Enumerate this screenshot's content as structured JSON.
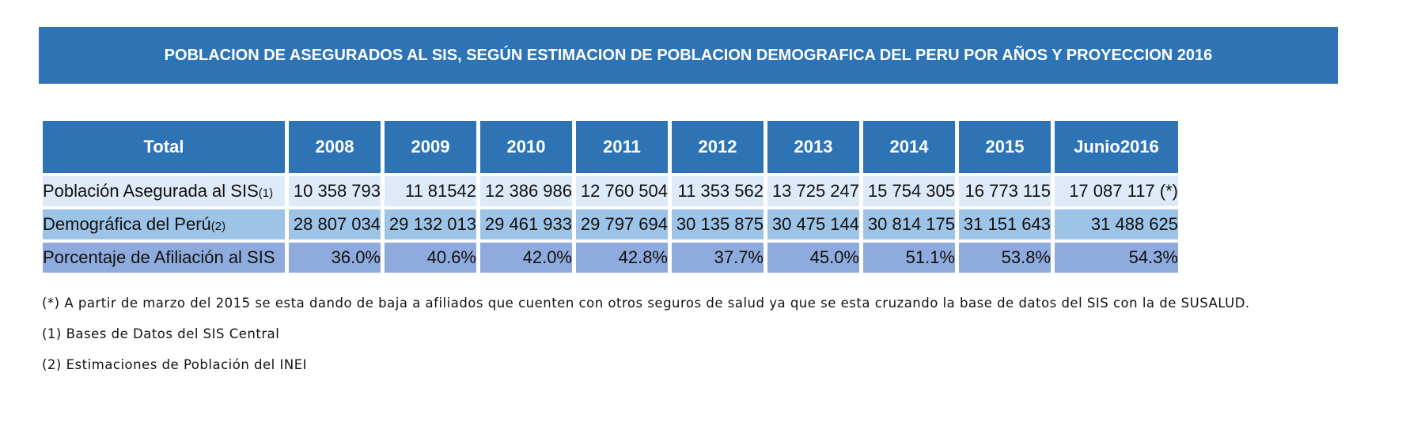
{
  "title": "POBLACION DE ASEGURADOS AL SIS, SEGÚN ESTIMACION DE POBLACION DEMOGRAFICA DEL PERU POR AÑOS Y PROYECCION 2016",
  "table": {
    "headers": [
      "Total",
      "2008",
      "2009",
      "2010",
      "2011",
      "2012",
      "2013",
      "2014",
      "2015",
      "Junio2016"
    ],
    "rows": [
      {
        "label": "Población Asegurada al SIS",
        "ref": "(1)",
        "values": [
          "10 358 793",
          "11 81542",
          "12 386 986",
          "12 760 504",
          "11 353 562",
          "13 725 247",
          "15 754 305",
          "16 773 115",
          "17 087 117 (*)"
        ]
      },
      {
        "label": "Demográfica del Perú",
        "ref": "(2)",
        "values": [
          "28 807 034",
          "29 132 013",
          "29 461 933",
          "29 797 694",
          "30 135 875",
          "30 475 144",
          "30 814 175",
          "31 151 643",
          "31 488 625"
        ]
      },
      {
        "label": "Porcentaje de Afiliación al SIS",
        "ref": "",
        "values": [
          "36.0%",
          "40.6%",
          "42.0%",
          "42.8%",
          "37.7%",
          "45.0%",
          "51.1%",
          "53.8%",
          "54.3%"
        ]
      }
    ]
  },
  "notes": [
    "(*) A partir de marzo del 2015 se esta dando de baja a afiliados que cuenten con otros seguros de salud  ya que se esta cruzando la base de datos del SIS con la de SUSALUD.",
    "(1) Bases de Datos del SIS Central",
    "(2) Estimaciones de Población del INEI"
  ],
  "colors": {
    "header_bg": "#2e74b5",
    "row1_bg": "#ddeaf7",
    "row2_bg": "#9dc3e6",
    "row3_bg": "#8faadc"
  }
}
